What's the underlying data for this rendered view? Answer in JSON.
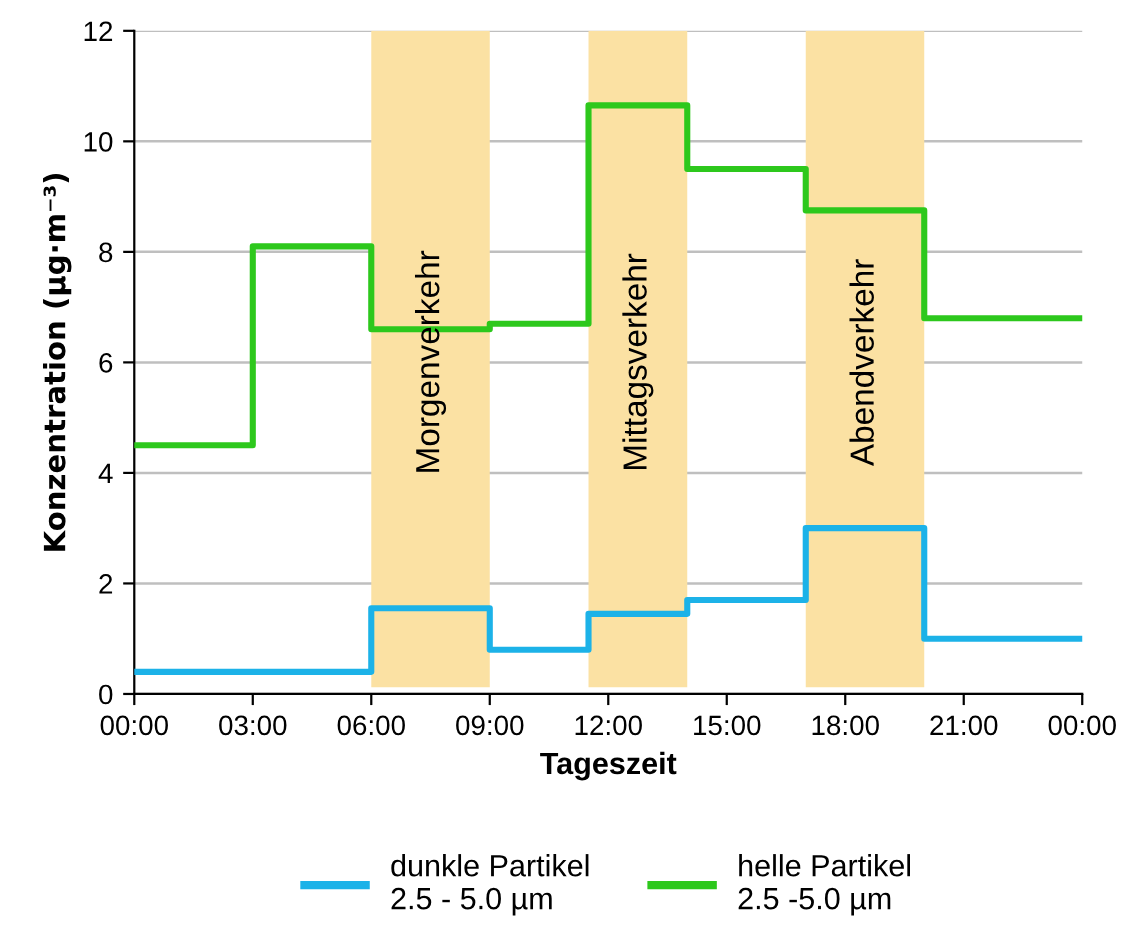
{
  "chart_data": {
    "type": "step",
    "xlabel": "Tageszeit",
    "ylabel": "Konzentration (µg·m⁻³)",
    "x": [
      0,
      3,
      6,
      9,
      11.5,
      14,
      17,
      20,
      24
    ],
    "series": [
      {
        "name": "dunkle Partikel\n2.5 - 5.0 µm",
        "color": "#1cb2e8",
        "values": [
          0.4,
          0.4,
          1.55,
          0.8,
          1.45,
          1.7,
          3.0,
          1.0,
          1.0
        ]
      },
      {
        "name": "helle Partikel\n2.5 -5.0 µm",
        "color": "#2dc81c",
        "values": [
          4.5,
          8.1,
          6.6,
          6.7,
          10.65,
          9.5,
          8.75,
          6.8,
          6.8
        ]
      }
    ],
    "bands": [
      {
        "axis": "x",
        "from": 6,
        "to": 9,
        "label": "Morgenverkehr",
        "color": "#fbe1a3"
      },
      {
        "axis": "x",
        "from": 11.5,
        "to": 14,
        "label": "Mittagsverkehr",
        "color": "#fbe1a3"
      },
      {
        "axis": "x",
        "from": 17,
        "to": 20,
        "label": "Abendverkehr",
        "color": "#fbe1a3"
      }
    ],
    "xlim": [
      0,
      24
    ],
    "xticks": [
      {
        "value": 0,
        "label": "00:00"
      },
      {
        "value": 3,
        "label": "03:00"
      },
      {
        "value": 6,
        "label": "06:00"
      },
      {
        "value": 9,
        "label": "09:00"
      },
      {
        "value": 12,
        "label": "12:00"
      },
      {
        "value": 15,
        "label": "15:00"
      },
      {
        "value": 18,
        "label": "18:00"
      },
      {
        "value": 21,
        "label": "21:00"
      },
      {
        "value": 24,
        "label": "00:00"
      }
    ],
    "ylim": [
      0,
      12
    ],
    "yticks": [
      0,
      2,
      4,
      6,
      8,
      10,
      12
    ],
    "grid": "y",
    "legend": "bottom",
    "line_style": "solid"
  }
}
